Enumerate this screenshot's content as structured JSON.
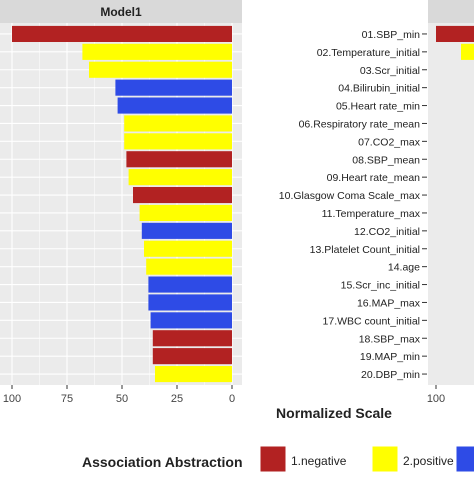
{
  "chart_data": {
    "type": "bar",
    "orientation": "horizontal",
    "x_reversed": true,
    "panels": [
      {
        "title": "Model1",
        "categories": [
          "01.SBP_min",
          "02.Temperature_initial",
          "03.Scr_initial",
          "04.Bilirubin_initial",
          "05.Heart rate_min",
          "06.Respiratory rate_mean",
          "07.CO2_max",
          "08.SBP_mean",
          "09.Heart rate_mean",
          "10.Glasgow Coma Scale_max",
          "11.Temperature_max",
          "12.CO2_initial",
          "13.Platelet Count_initial",
          "14.age",
          "15.Scr_inc_initial",
          "16.MAP_max",
          "17.WBC count_initial",
          "18.SBP_max",
          "19.MAP_min",
          "20.DBP_min"
        ],
        "values": [
          100,
          68,
          65,
          53,
          52,
          49,
          49,
          48,
          47,
          45,
          42,
          41,
          40,
          39,
          38,
          38,
          37,
          36,
          36,
          35
        ],
        "groups": [
          "1.negative",
          "2.positive",
          "2.positive",
          "3",
          "3",
          "2.positive",
          "2.positive",
          "1.negative",
          "2.positive",
          "1.negative",
          "2.positive",
          "3",
          "2.positive",
          "2.positive",
          "3",
          "3",
          "3",
          "1.negative",
          "1.negative",
          "2.positive"
        ]
      }
    ],
    "xticks": [
      "100",
      "75",
      "50",
      "25",
      "0"
    ],
    "xlim": [
      100,
      0
    ],
    "xlabel": "Normalized Scale",
    "second_panel_tick": "100",
    "legend": {
      "title": "Association Abstraction",
      "position": "bottom",
      "entries": [
        {
          "key": "1.negative",
          "label": "1.negative",
          "color": "#b22222"
        },
        {
          "key": "2.positive",
          "label": "2.positive",
          "color": "#ffff00"
        },
        {
          "key": "3",
          "label": "",
          "color": "#2e4be6"
        }
      ]
    },
    "grid": true,
    "colors": {
      "panel_bg": "#ebebeb",
      "strip_bg": "#d9d9d9",
      "grid": "#ffffff",
      "text": "#222222",
      "tick_text": "#444444"
    }
  }
}
